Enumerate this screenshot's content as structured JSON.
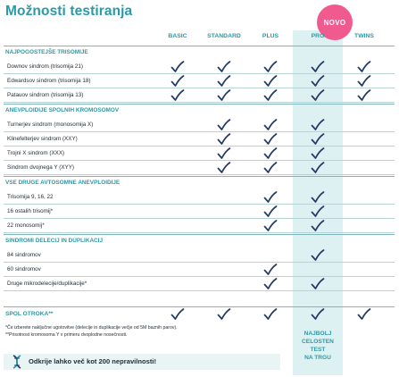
{
  "title": "Možnosti testiranja",
  "badge": "NOVO",
  "columns": [
    "BASIC",
    "STANDARD",
    "PLUS",
    "PRO",
    "TWINS"
  ],
  "sections": [
    {
      "title": "NAJPOGOSTEJŠE TRISOMIJE",
      "rows": [
        {
          "label": "Downov sindrom (trisomija 21)",
          "checks": [
            true,
            true,
            true,
            true,
            true
          ]
        },
        {
          "label": "Edwardsov sindrom (trisomija 18)",
          "checks": [
            true,
            true,
            true,
            true,
            true
          ]
        },
        {
          "label": "Patauov sindrom (trisomija 13)",
          "checks": [
            true,
            true,
            true,
            true,
            true
          ]
        }
      ]
    },
    {
      "title": "ANEVPLOIDIJE SPOLNIH KROMOSOMOV",
      "rows": [
        {
          "label": "Turnerjev sindrom (monosomija X)",
          "checks": [
            false,
            true,
            true,
            true,
            false
          ]
        },
        {
          "label": "Klinefelterjev sindrom (XXY)",
          "checks": [
            false,
            true,
            true,
            true,
            false
          ]
        },
        {
          "label": "Trojni X sindrom (XXX)",
          "checks": [
            false,
            true,
            true,
            true,
            false
          ]
        },
        {
          "label": "Sindrom dvojnega Y (XYY)",
          "checks": [
            false,
            true,
            true,
            true,
            false
          ]
        }
      ]
    },
    {
      "title": "VSE DRUGE AVTOSOMNE ANEVPLOIDIJE",
      "rows": [
        {
          "label": "Trisomija 9, 16, 22",
          "checks": [
            false,
            false,
            true,
            true,
            false
          ]
        },
        {
          "label": "16 ostalih trisomij*",
          "checks": [
            false,
            false,
            true,
            true,
            false
          ]
        },
        {
          "label": "22 monosomij*",
          "checks": [
            false,
            false,
            true,
            true,
            false
          ]
        }
      ]
    },
    {
      "title": "SINDROMI DELECIJ IN DUPLIKACIJ",
      "rows": [
        {
          "label": "84 sindromov",
          "checks": [
            false,
            false,
            false,
            true,
            false
          ]
        },
        {
          "label": "60 sindromov",
          "checks": [
            false,
            false,
            true,
            false,
            false
          ]
        },
        {
          "label": "Druge mikrodelecije/duplikacije*",
          "checks": [
            false,
            false,
            true,
            true,
            false
          ]
        }
      ]
    }
  ],
  "spol": {
    "label": "SPOL OTROKA**",
    "checks": [
      true,
      true,
      true,
      true,
      true
    ]
  },
  "footnotes": [
    "*Če izberete naključne ugotovitve (delecije in duplikacije večje od 5M baznih parov).",
    "**Prisotnost kromosoma Y v primeru dvoplodne nosečnosti."
  ],
  "cta": [
    "NAJBOLJ",
    "CELOSTEN",
    "TEST",
    "NA TRGU"
  ],
  "bottom_text": "Odkrije lahko več kot 200 nepravilnosti!",
  "colors": {
    "accent": "#2b9aa6",
    "pro_bg": "#ddf1f2",
    "badge": "#f05a8e",
    "check": "#223a66"
  }
}
